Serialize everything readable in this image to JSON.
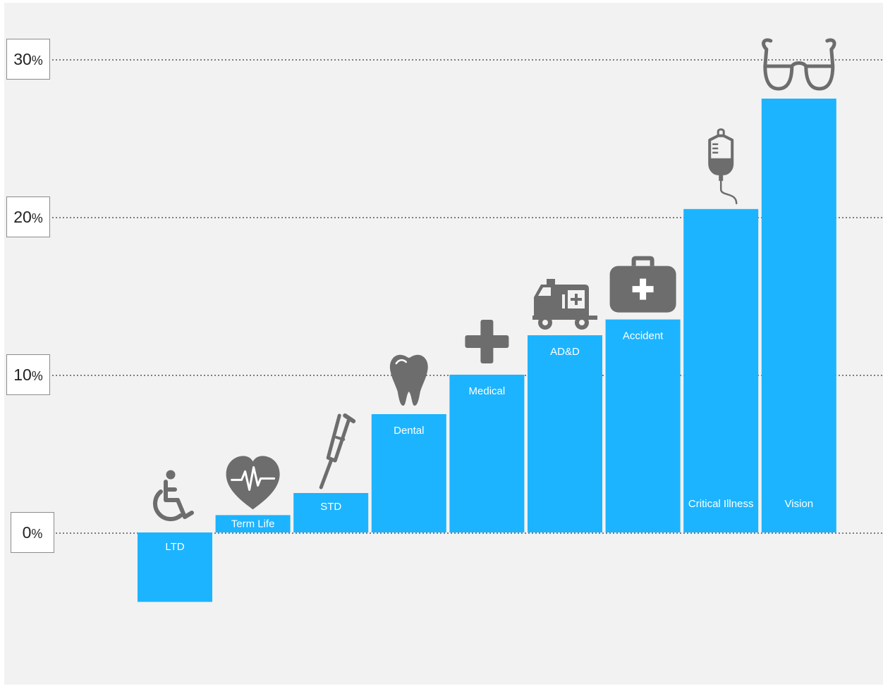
{
  "chart_data": {
    "type": "bar",
    "categories": [
      "LTD",
      "Term Life",
      "STD",
      "Dental",
      "Medical",
      "AD&D",
      "Accident",
      "Critical Illness",
      "Vision"
    ],
    "series": [
      {
        "values": [
          -4.4,
          1.1,
          2.5,
          7.5,
          10.0,
          12.5,
          13.5,
          20.5,
          27.5
        ]
      }
    ],
    "icons": [
      "wheelchair-icon",
      "heart-rate-icon",
      "crutch-icon",
      "tooth-icon",
      "medical-cross-icon",
      "ambulance-icon",
      "first-aid-kit-icon",
      "iv-bag-icon",
      "eyeglasses-icon"
    ],
    "yticks": [
      0,
      10,
      20,
      30
    ],
    "ytick_suffix": "%",
    "ylim": [
      -9,
      31
    ],
    "grid": "dotted horizontal",
    "title": "",
    "xlabel": "",
    "ylabel": ""
  },
  "colors": {
    "bar": "#1cb4ff",
    "icon": "#6d6d6d",
    "background": "#f2f2f2",
    "label": "#ffffff",
    "grid": "#555555"
  }
}
